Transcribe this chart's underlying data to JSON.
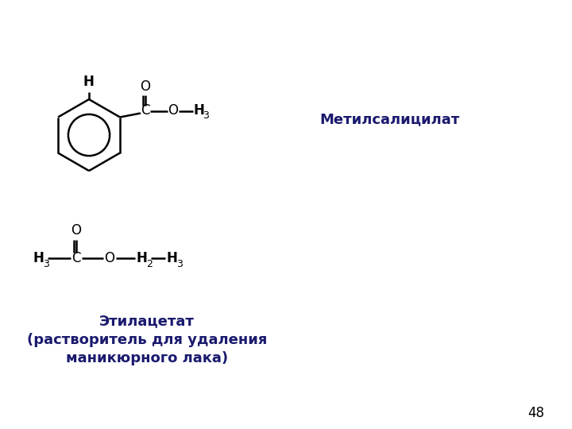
{
  "title_color": "#1a1a6e",
  "line_color": "#000000",
  "bg_color": "#ffffff",
  "label1": "Метилсалицилат",
  "label2": "Этилацетат\n(растворитель для удаления\nманикюрного лака)",
  "page_number": "48",
  "font_size_label": 13,
  "font_size_atom": 12,
  "font_size_subscript": 9,
  "font_size_page": 12,
  "lw": 1.8
}
